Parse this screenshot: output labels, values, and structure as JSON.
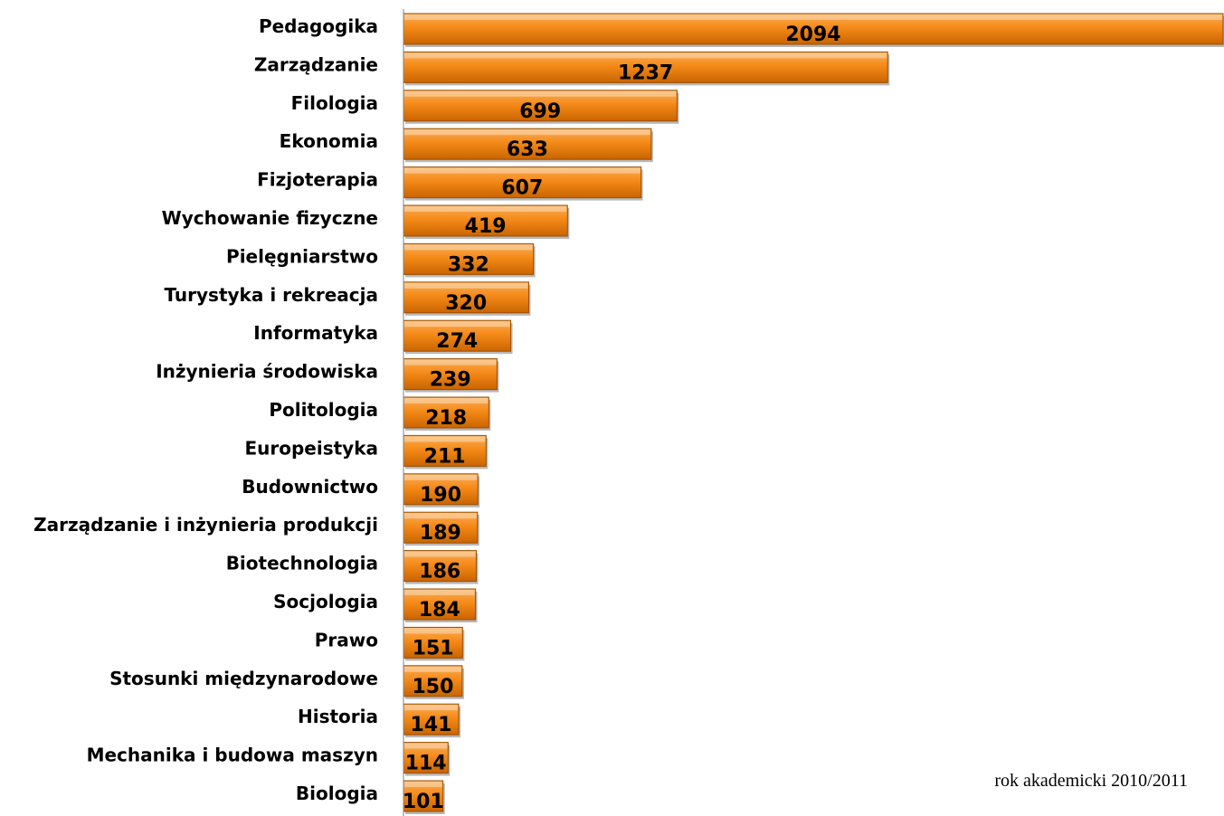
{
  "note": "rok akademicki 2010/2011",
  "colors": {
    "bar_top": "#f9ae5a",
    "bar_mid": "#f58a18",
    "bar_bottom": "#c96400",
    "bar_stroke": "#9a4f00",
    "axis": "#808080"
  },
  "chart_data": {
    "type": "bar",
    "orientation": "horizontal",
    "categories": [
      "Pedagogika",
      "Zarządzanie",
      "Filologia",
      "Ekonomia",
      "Fizjoterapia",
      "Wychowanie fizyczne",
      "Pielęgniarstwo",
      "Turystyka i rekreacja",
      "Informatyka",
      "Inżynieria środowiska",
      "Politologia",
      "Europeistyka",
      "Budownictwo",
      "Zarządzanie i inżynieria produkcji",
      "Biotechnologia",
      "Socjologia",
      "Prawo",
      "Stosunki międzynarodowe",
      "Historia",
      "Mechanika i budowa maszyn",
      "Biologia"
    ],
    "values": [
      2094,
      1237,
      699,
      633,
      607,
      419,
      332,
      320,
      274,
      239,
      218,
      211,
      190,
      189,
      186,
      184,
      151,
      150,
      141,
      114,
      101
    ],
    "data_labels": true,
    "xlim": [
      0,
      2094
    ],
    "grid": false,
    "legend": "none"
  }
}
